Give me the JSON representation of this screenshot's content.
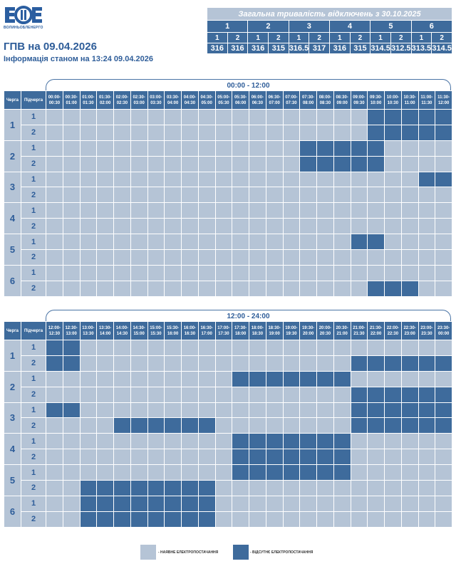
{
  "header": {
    "logo_text": "ВОЛИНЬОБЛЕНЕРГО",
    "title": "ГПВ на 09.04.2026",
    "subtitle": "Інформація станом на 13:24 09.04.2026"
  },
  "summary": {
    "heading": "Загальна тривалість відключень з 30.10.2025",
    "queues": [
      "1",
      "2",
      "3",
      "4",
      "5",
      "6"
    ],
    "subqueues": [
      "1",
      "2",
      "1",
      "2",
      "1",
      "2",
      "1",
      "2",
      "1",
      "2",
      "1",
      "2"
    ],
    "values": [
      "316",
      "316",
      "316",
      "315",
      "316.5",
      "317",
      "316",
      "315",
      "314.5",
      "312.5",
      "313.5",
      "314.5"
    ]
  },
  "colors": {
    "available": "#b5c4d6",
    "outage": "#3e6b9c",
    "accent": "#2e5d99"
  },
  "table_headers": {
    "queue": "Черга",
    "subqueue": "Підчерга"
  },
  "tables": [
    {
      "period": "00:00 - 12:00",
      "slots": [
        "00:00-00:30",
        "00:30-01:00",
        "01:00-01:30",
        "01:30-02:00",
        "02:00-02:30",
        "02:30-03:00",
        "03:00-03:30",
        "03:30-04:00",
        "04:00-04:30",
        "04:30-05:00",
        "05:00-05:30",
        "05:30-06:00",
        "06:00-06:30",
        "06:30-07:00",
        "07:00-07:30",
        "07:30-08:00",
        "08:00-08:30",
        "08:30-09:00",
        "09:00-09:30",
        "09:30-10:00",
        "10:00-10:30",
        "10:30-11:00",
        "11:00-11:30",
        "11:30-12:00"
      ],
      "queues": [
        {
          "label": "1",
          "rows": [
            {
              "sub": "1",
              "cells": "000000000000000000011111"
            },
            {
              "sub": "2",
              "cells": "000000000000000000011111"
            }
          ]
        },
        {
          "label": "2",
          "rows": [
            {
              "sub": "1",
              "cells": "000000000000000111110000"
            },
            {
              "sub": "2",
              "cells": "000000000000000111110000"
            }
          ]
        },
        {
          "label": "3",
          "rows": [
            {
              "sub": "1",
              "cells": "000000000000000000000011"
            },
            {
              "sub": "2",
              "cells": "000000000000000000000000"
            }
          ]
        },
        {
          "label": "4",
          "rows": [
            {
              "sub": "1",
              "cells": "000000000000000000000000"
            },
            {
              "sub": "2",
              "cells": "000000000000000000000000"
            }
          ]
        },
        {
          "label": "5",
          "rows": [
            {
              "sub": "1",
              "cells": "000000000000000000110000"
            },
            {
              "sub": "2",
              "cells": "000000000000000000000000"
            }
          ]
        },
        {
          "label": "6",
          "rows": [
            {
              "sub": "1",
              "cells": "000000000000000000000000"
            },
            {
              "sub": "2",
              "cells": "000000000000000000011100"
            }
          ]
        }
      ]
    },
    {
      "period": "12:00 - 24:00",
      "slots": [
        "12:00-12:30",
        "12:30-13:00",
        "13:00-13:30",
        "13:30-14:00",
        "14:00-14:30",
        "14:30-15:00",
        "15:00-15:30",
        "15:30-16:00",
        "16:00-16:30",
        "16:30-17:00",
        "17:00-17:30",
        "17:30-18:00",
        "18:00-18:30",
        "18:30-19:00",
        "19:00-19:30",
        "19:30-20:00",
        "20:00-20:30",
        "20:30-21:00",
        "21:00-21:30",
        "21:30-22:00",
        "22:00-22:30",
        "22:30-23:00",
        "23:00-23:30",
        "23:30-00:00"
      ],
      "queues": [
        {
          "label": "1",
          "rows": [
            {
              "sub": "1",
              "cells": "110000000000000000000000"
            },
            {
              "sub": "2",
              "cells": "110000000000000000111111"
            }
          ]
        },
        {
          "label": "2",
          "rows": [
            {
              "sub": "1",
              "cells": "000000000001111111000000"
            },
            {
              "sub": "2",
              "cells": "000000000000000000111111"
            }
          ]
        },
        {
          "label": "3",
          "rows": [
            {
              "sub": "1",
              "cells": "110000000000000000111111"
            },
            {
              "sub": "2",
              "cells": "000011111100000000111111"
            }
          ]
        },
        {
          "label": "4",
          "rows": [
            {
              "sub": "1",
              "cells": "000000000001111111000000"
            },
            {
              "sub": "2",
              "cells": "000000000001111111000000"
            }
          ]
        },
        {
          "label": "5",
          "rows": [
            {
              "sub": "1",
              "cells": "000000000001111111000000"
            },
            {
              "sub": "2",
              "cells": "001111111100000000000000"
            }
          ]
        },
        {
          "label": "6",
          "rows": [
            {
              "sub": "1",
              "cells": "001111111100000000000000"
            },
            {
              "sub": "2",
              "cells": "001111111100000000000000"
            }
          ]
        }
      ]
    }
  ],
  "legend": {
    "available": "- НАЯВНЕ ЕЛЕКТРОПОСТАЧАННЯ",
    "outage": "- ВІДСУТНЄ ЕЛЕКТРОПОСТАЧАННЯ"
  }
}
